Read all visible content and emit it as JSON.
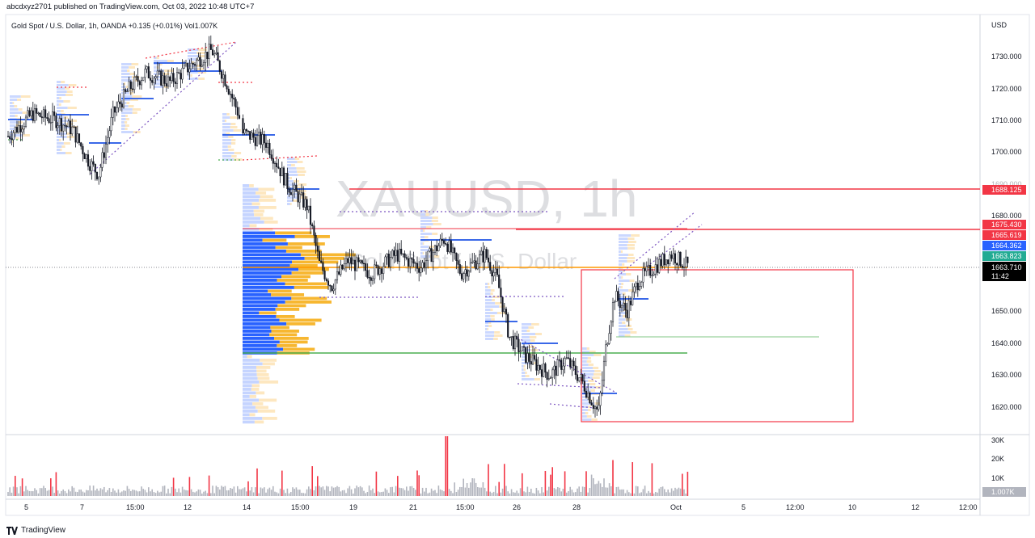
{
  "header": {
    "publish_line": "abcdxyz2701 published on TradingView.com, Oct 03, 2022 10:48 UTC+7",
    "legend": "Gold Spot / U.S. Dollar, 1h, OANDA  +0.135 (+0.01%)  Vol1.007K"
  },
  "watermark": {
    "symbol": "XAUUSD, 1h",
    "subtitle": "Gold Spot / U.S. Dollar"
  },
  "brand": {
    "name": "TradingView",
    "logo_icon": "tradingview-logo-icon"
  },
  "price_axis": {
    "currency": "USD",
    "ticks": [
      "1730.000",
      "1720.000",
      "1710.000",
      "1700.000",
      "1690.000",
      "1680.000",
      "1650.000",
      "1640.000",
      "1630.000",
      "1620.000"
    ]
  },
  "price_labels": [
    {
      "name": "price-label-1688",
      "text": "1688.125",
      "color": "#f23645"
    },
    {
      "name": "price-label-1675",
      "text": "1675.430",
      "color": "#f23645"
    },
    {
      "name": "price-label-1665",
      "text": "1665.619",
      "color": "#f23645"
    },
    {
      "name": "price-label-1664",
      "text": "1664.362",
      "color": "#2962ff"
    },
    {
      "name": "price-label-1663-823",
      "text": "1663.823",
      "color": "#22ab94"
    },
    {
      "name": "price-label-last",
      "text": "1663.710",
      "countdown": "11:42",
      "color": "#000000"
    }
  ],
  "volume_axis": {
    "ticks": [
      "30K",
      "20K",
      "10K"
    ],
    "last": "1.007K"
  },
  "time_axis": {
    "ticks": [
      "5",
      "7",
      "15:00",
      "12",
      "14",
      "15:00",
      "19",
      "21",
      "15:00",
      "26",
      "28",
      "Oct",
      "5",
      "12:00",
      "10",
      "12",
      "12:00"
    ]
  },
  "colors": {
    "up_candle": "#131722",
    "down_candle": "#131722",
    "volume_bar_gray": "#b2b5be",
    "volume_bar_red": "#f23645",
    "vp_blue": "#2962ff",
    "vp_yellow": "#f7b731",
    "vp_light_blue": "#c5d4ff",
    "vp_light_yellow": "#fde7c0",
    "support_green": "#4caf50",
    "resistance_red": "#f23645",
    "poc_orange": "#ff9800"
  }
}
